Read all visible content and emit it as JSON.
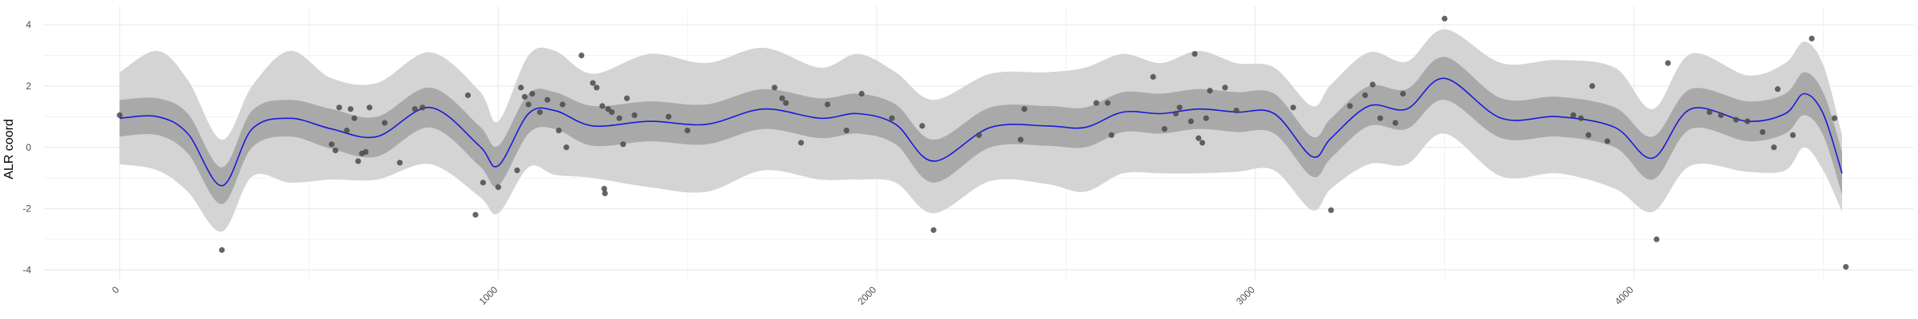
{
  "chart_data": {
    "type": "scatter",
    "title": "",
    "xlabel": "",
    "ylabel": "ALR coord",
    "xlim": [
      -200,
      4740
    ],
    "ylim": [
      -4.3,
      4.6
    ],
    "x_ticks": [
      0,
      1000,
      2000,
      3000,
      4000
    ],
    "y_ticks": [
      -4,
      -2,
      0,
      2,
      4
    ],
    "grid": true,
    "legend": "none",
    "colors": {
      "line": "#1a1adb",
      "inner_band": "#a9a9a9",
      "outer_band": "#d4d4d4",
      "points": "#4a4a4a",
      "grid": "#ebebeb"
    },
    "smooth_fit": {
      "x": [
        0,
        100,
        180,
        270,
        350,
        450,
        560,
        680,
        820,
        950,
        1000,
        1080,
        1150,
        1250,
        1400,
        1550,
        1700,
        1850,
        1950,
        2050,
        2150,
        2300,
        2450,
        2550,
        2650,
        2750,
        2850,
        2950,
        3050,
        3150,
        3200,
        3300,
        3400,
        3500,
        3650,
        3800,
        3950,
        4050,
        4150,
        4300,
        4400,
        4450,
        4500,
        4550
      ],
      "y": [
        0.95,
        1.0,
        0.45,
        -1.25,
        0.6,
        0.95,
        0.6,
        0.35,
        1.3,
        0.05,
        -0.6,
        1.1,
        1.2,
        0.7,
        0.85,
        0.75,
        1.25,
        0.95,
        1.1,
        0.75,
        -0.45,
        0.65,
        0.7,
        0.65,
        1.15,
        1.1,
        1.25,
        1.15,
        1.1,
        -0.3,
        0.3,
        1.35,
        1.25,
        2.25,
        0.95,
        1.0,
        0.65,
        -0.35,
        1.25,
        0.85,
        1.1,
        1.75,
        1.1,
        -0.85
      ],
      "inner_upper": [
        1.55,
        1.6,
        1.1,
        -0.65,
        1.2,
        1.55,
        1.25,
        1.0,
        1.95,
        0.7,
        0.05,
        1.75,
        1.8,
        1.35,
        1.5,
        1.4,
        1.9,
        1.6,
        1.75,
        1.4,
        0.25,
        1.3,
        1.35,
        1.3,
        1.8,
        1.75,
        1.9,
        1.8,
        1.75,
        0.35,
        0.95,
        2.0,
        1.9,
        2.95,
        1.6,
        1.65,
        1.3,
        0.35,
        1.9,
        1.5,
        1.75,
        2.45,
        1.8,
        -0.15
      ],
      "inner_lower": [
        0.35,
        0.4,
        -0.2,
        -1.85,
        0.0,
        0.35,
        -0.05,
        -0.3,
        0.65,
        -0.6,
        -1.25,
        0.45,
        0.6,
        0.05,
        0.2,
        0.1,
        0.6,
        0.3,
        0.45,
        0.1,
        -1.15,
        0.0,
        0.05,
        0.0,
        0.5,
        0.45,
        0.6,
        0.5,
        0.45,
        -0.95,
        -0.35,
        0.7,
        0.6,
        1.55,
        0.3,
        0.35,
        0.0,
        -1.05,
        0.6,
        0.2,
        0.45,
        1.05,
        0.4,
        -1.55
      ],
      "outer_upper": [
        2.45,
        3.15,
        2.2,
        0.25,
        2.0,
        3.15,
        2.25,
        2.1,
        3.1,
        1.85,
        0.85,
        3.0,
        3.15,
        2.4,
        3.05,
        2.75,
        3.25,
        2.6,
        3.05,
        2.45,
        1.55,
        2.4,
        2.45,
        2.6,
        3.05,
        2.75,
        3.15,
        2.75,
        2.6,
        1.35,
        2.05,
        3.1,
        2.8,
        3.85,
        2.75,
        2.85,
        2.6,
        1.25,
        3.05,
        2.35,
        2.75,
        3.45,
        2.7,
        0.4
      ],
      "outer_lower": [
        -0.55,
        -0.75,
        -1.45,
        -2.75,
        -0.95,
        -1.15,
        -1.05,
        -1.05,
        -0.55,
        -1.6,
        -2.15,
        -0.65,
        -0.9,
        -1.0,
        -1.3,
        -1.45,
        -0.75,
        -1.05,
        -1.05,
        -1.15,
        -2.15,
        -1.1,
        -1.2,
        -1.45,
        -0.85,
        -0.85,
        -0.85,
        -0.8,
        -0.75,
        -2.05,
        -1.35,
        -0.55,
        -0.55,
        0.45,
        -0.95,
        -0.85,
        -1.35,
        -2.1,
        -0.6,
        -0.8,
        -0.75,
        0.0,
        -0.75,
        -2.1
      ]
    },
    "points": [
      {
        "x": 0,
        "y": 1.05
      },
      {
        "x": 270,
        "y": -3.35
      },
      {
        "x": 560,
        "y": 0.1
      },
      {
        "x": 570,
        "y": -0.1
      },
      {
        "x": 580,
        "y": 1.3
      },
      {
        "x": 600,
        "y": 0.55
      },
      {
        "x": 610,
        "y": 1.25
      },
      {
        "x": 620,
        "y": 0.95
      },
      {
        "x": 630,
        "y": -0.45
      },
      {
        "x": 640,
        "y": -0.2
      },
      {
        "x": 650,
        "y": -0.15
      },
      {
        "x": 660,
        "y": 1.3
      },
      {
        "x": 700,
        "y": 0.8
      },
      {
        "x": 740,
        "y": -0.5
      },
      {
        "x": 780,
        "y": 1.25
      },
      {
        "x": 800,
        "y": 1.3
      },
      {
        "x": 920,
        "y": 1.7
      },
      {
        "x": 940,
        "y": -2.2
      },
      {
        "x": 960,
        "y": -1.15
      },
      {
        "x": 1000,
        "y": -1.3
      },
      {
        "x": 1050,
        "y": -0.75
      },
      {
        "x": 1060,
        "y": 1.95
      },
      {
        "x": 1070,
        "y": 1.65
      },
      {
        "x": 1080,
        "y": 1.4
      },
      {
        "x": 1090,
        "y": 1.75
      },
      {
        "x": 1110,
        "y": 1.15
      },
      {
        "x": 1130,
        "y": 1.55
      },
      {
        "x": 1160,
        "y": 0.55
      },
      {
        "x": 1170,
        "y": 1.4
      },
      {
        "x": 1180,
        "y": 0.0
      },
      {
        "x": 1220,
        "y": 3.0
      },
      {
        "x": 1250,
        "y": 2.1
      },
      {
        "x": 1260,
        "y": 1.95
      },
      {
        "x": 1275,
        "y": 1.35
      },
      {
        "x": 1280,
        "y": -1.35
      },
      {
        "x": 1282,
        "y": -1.5
      },
      {
        "x": 1290,
        "y": 1.25
      },
      {
        "x": 1300,
        "y": 1.15
      },
      {
        "x": 1320,
        "y": 0.95
      },
      {
        "x": 1330,
        "y": 0.1
      },
      {
        "x": 1340,
        "y": 1.6
      },
      {
        "x": 1360,
        "y": 1.05
      },
      {
        "x": 1450,
        "y": 1.0
      },
      {
        "x": 1500,
        "y": 0.55
      },
      {
        "x": 1730,
        "y": 1.95
      },
      {
        "x": 1750,
        "y": 1.6
      },
      {
        "x": 1760,
        "y": 1.45
      },
      {
        "x": 1800,
        "y": 0.15
      },
      {
        "x": 1870,
        "y": 1.4
      },
      {
        "x": 1920,
        "y": 0.55
      },
      {
        "x": 1960,
        "y": 1.75
      },
      {
        "x": 2040,
        "y": 0.95
      },
      {
        "x": 2120,
        "y": 0.7
      },
      {
        "x": 2150,
        "y": -2.7
      },
      {
        "x": 2270,
        "y": 0.4
      },
      {
        "x": 2380,
        "y": 0.25
      },
      {
        "x": 2390,
        "y": 1.25
      },
      {
        "x": 2580,
        "y": 1.45
      },
      {
        "x": 2610,
        "y": 1.45
      },
      {
        "x": 2620,
        "y": 0.4
      },
      {
        "x": 2730,
        "y": 2.3
      },
      {
        "x": 2760,
        "y": 0.6
      },
      {
        "x": 2790,
        "y": 1.1
      },
      {
        "x": 2800,
        "y": 1.3
      },
      {
        "x": 2830,
        "y": 0.85
      },
      {
        "x": 2840,
        "y": 3.05
      },
      {
        "x": 2850,
        "y": 0.3
      },
      {
        "x": 2860,
        "y": 0.15
      },
      {
        "x": 2870,
        "y": 0.95
      },
      {
        "x": 2880,
        "y": 1.85
      },
      {
        "x": 2920,
        "y": 1.95
      },
      {
        "x": 2950,
        "y": 1.2
      },
      {
        "x": 3100,
        "y": 1.3
      },
      {
        "x": 3200,
        "y": -2.05
      },
      {
        "x": 3250,
        "y": 1.35
      },
      {
        "x": 3290,
        "y": 1.7
      },
      {
        "x": 3310,
        "y": 2.05
      },
      {
        "x": 3330,
        "y": 0.95
      },
      {
        "x": 3370,
        "y": 0.8
      },
      {
        "x": 3390,
        "y": 1.75
      },
      {
        "x": 3500,
        "y": 4.2
      },
      {
        "x": 3840,
        "y": 1.05
      },
      {
        "x": 3860,
        "y": 0.95
      },
      {
        "x": 3880,
        "y": 0.4
      },
      {
        "x": 3890,
        "y": 2.0
      },
      {
        "x": 3930,
        "y": 0.2
      },
      {
        "x": 4060,
        "y": -3.0
      },
      {
        "x": 4090,
        "y": 2.75
      },
      {
        "x": 4200,
        "y": 1.15
      },
      {
        "x": 4230,
        "y": 1.05
      },
      {
        "x": 4270,
        "y": 0.9
      },
      {
        "x": 4300,
        "y": 0.85
      },
      {
        "x": 4340,
        "y": 0.5
      },
      {
        "x": 4370,
        "y": 0.0
      },
      {
        "x": 4380,
        "y": 1.9
      },
      {
        "x": 4420,
        "y": 0.4
      },
      {
        "x": 4470,
        "y": 3.55
      },
      {
        "x": 4530,
        "y": 0.95
      },
      {
        "x": 4560,
        "y": -3.9
      }
    ]
  }
}
